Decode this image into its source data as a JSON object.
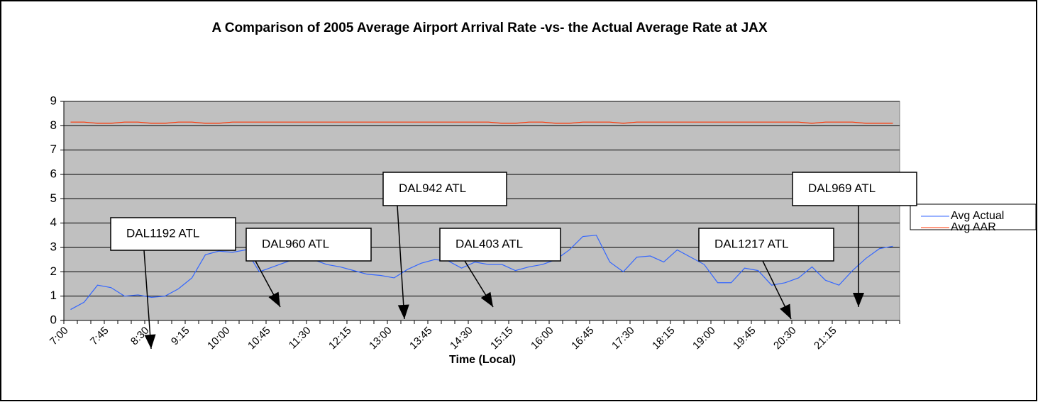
{
  "chart_data": {
    "type": "line",
    "title": "A Comparison of 2005 Average Airport Arrival Rate -vs- the Actual Average Rate at JAX",
    "x_label": "Time (Local)",
    "categories": [
      "7:00",
      null,
      null,
      "7:45",
      null,
      null,
      "8:30",
      null,
      null,
      "9:15",
      null,
      null,
      "10:00",
      null,
      null,
      "10:45",
      null,
      null,
      "11:30",
      null,
      null,
      "12:15",
      null,
      null,
      "13:00",
      null,
      null,
      "13:45",
      null,
      null,
      "14:30",
      null,
      null,
      "15:15",
      null,
      null,
      "16:00",
      null,
      null,
      "16:45",
      null,
      null,
      "17:30",
      null,
      null,
      "18:15",
      null,
      null,
      "19:00",
      null,
      null,
      "19:45",
      null,
      null,
      "20:30",
      null,
      null,
      "21:15",
      null,
      null,
      null,
      null
    ],
    "series": [
      {
        "name": "Avg Actual",
        "color": "#3366ff",
        "values": [
          0.45,
          0.75,
          1.45,
          1.35,
          1.0,
          1.05,
          0.95,
          1.0,
          1.3,
          1.75,
          2.7,
          2.85,
          2.8,
          2.9,
          2.0,
          2.2,
          2.4,
          2.6,
          2.5,
          2.3,
          2.2,
          2.05,
          1.9,
          1.85,
          1.75,
          2.1,
          2.35,
          2.5,
          2.45,
          2.15,
          2.4,
          2.3,
          2.3,
          2.05,
          2.2,
          2.3,
          2.5,
          2.9,
          3.45,
          3.5,
          2.4,
          2.0,
          2.6,
          2.65,
          2.4,
          2.9,
          2.6,
          2.3,
          1.55,
          1.55,
          2.15,
          2.05,
          1.45,
          1.55,
          1.75,
          2.2,
          1.65,
          1.45,
          2.05,
          2.55,
          2.95,
          3.05
        ]
      },
      {
        "name": "Avg AAR",
        "color": "#ff3300",
        "values": [
          8.15,
          8.15,
          8.1,
          8.1,
          8.15,
          8.15,
          8.1,
          8.1,
          8.15,
          8.15,
          8.1,
          8.1,
          8.15,
          8.15,
          8.15,
          8.15,
          8.15,
          8.15,
          8.15,
          8.15,
          8.15,
          8.15,
          8.15,
          8.15,
          8.15,
          8.15,
          8.15,
          8.15,
          8.15,
          8.15,
          8.15,
          8.15,
          8.1,
          8.1,
          8.15,
          8.15,
          8.1,
          8.1,
          8.15,
          8.15,
          8.15,
          8.1,
          8.15,
          8.15,
          8.15,
          8.15,
          8.15,
          8.15,
          8.15,
          8.15,
          8.15,
          8.15,
          8.15,
          8.15,
          8.15,
          8.1,
          8.15,
          8.15,
          8.15,
          8.1,
          8.1,
          8.1
        ]
      }
    ],
    "ylim": [
      0,
      9
    ],
    "yticks": [
      0,
      1,
      2,
      3,
      4,
      5,
      6,
      7,
      8,
      9
    ],
    "grid": true,
    "legend": "right",
    "annotations": [
      "DAL1192 ATL",
      "DAL960 ATL",
      "DAL942 ATL",
      "DAL403 ATL",
      "DAL1217 ATL",
      "DAL969 ATL"
    ]
  }
}
